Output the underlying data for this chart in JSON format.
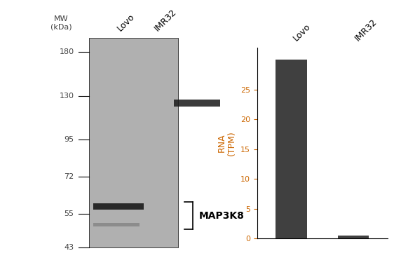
{
  "cell_lines": [
    "Lovo",
    "IMR32"
  ],
  "rna_values": [
    30.0,
    0.5
  ],
  "bar_color": "#404040",
  "ylabel": "RNA\n(TPM)",
  "ylabel_color": "#cc6600",
  "yticks": [
    0,
    5,
    10,
    15,
    20,
    25
  ],
  "ylim": [
    0,
    32
  ],
  "bar_width": 0.5,
  "gel_bg_color": "#b0b0b0",
  "gel_band_color": "#1a1a1a",
  "mw_labels": [
    180,
    130,
    95,
    72,
    55,
    43
  ],
  "mw_label_color": "#404040",
  "label_annotation": "MAP3K8",
  "figure_bg": "#ffffff",
  "tick_color": "#cc6600",
  "tick_label_color": "#cc6600",
  "axis_label_fontsize": 9,
  "bar_label_fontsize": 9,
  "mw_fontsize": 8,
  "annotation_fontsize": 10,
  "log_mw_min": 3.761,
  "log_mw_max": 5.298
}
